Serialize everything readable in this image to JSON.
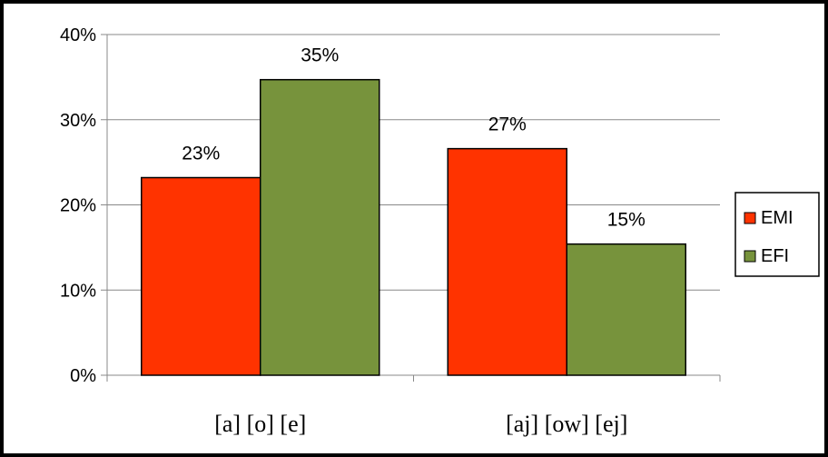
{
  "chart_data": {
    "type": "bar",
    "categories": [
      "[a] [o] [e]",
      "[aj] [ow] [ej]"
    ],
    "series": [
      {
        "name": "EMI",
        "color": "#ff3300",
        "values": [
          23.2,
          26.6
        ],
        "labels": [
          "23%",
          "27%"
        ]
      },
      {
        "name": "EFI",
        "color": "#77933c",
        "values": [
          34.7,
          15.4
        ],
        "labels": [
          "35%",
          "15%"
        ]
      }
    ],
    "ylim": [
      0,
      40
    ],
    "yticks": [
      0,
      10,
      20,
      30,
      40
    ],
    "ytick_labels": [
      "0%",
      "10%",
      "20%",
      "30%",
      "40%"
    ],
    "grid": true,
    "legend": "right",
    "title": "",
    "xlabel": "",
    "ylabel": ""
  }
}
